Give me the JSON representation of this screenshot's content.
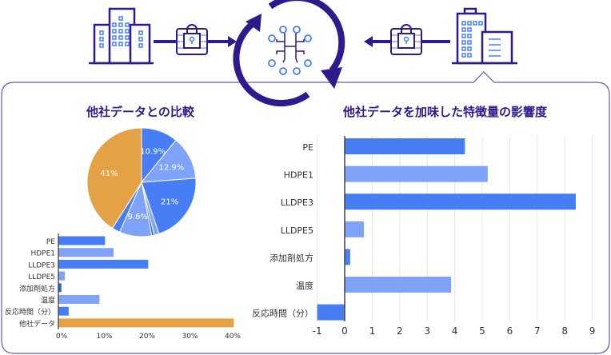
{
  "colors": {
    "primary": "#2e1a8c",
    "blue": "#477ef5",
    "light_blue": "#7fa3f8",
    "orange": "#e5a244",
    "frame": "#6a52b8"
  },
  "icons": [
    "company-building-icon",
    "encrypted-data-lock-icon",
    "arrow-right-icon",
    "ai-circuit-icon",
    "cycle-arrows-icon",
    "arrow-left-icon",
    "own-company-building-icon"
  ],
  "left_title": "他社データとの比較",
  "right_title": "他社データを加味した特徴量の影響度",
  "chart_data": [
    {
      "type": "pie",
      "categories": [
        "PE",
        "HDPE1",
        "LLDPE3",
        "LLDPE5",
        "添加剤処方",
        "温度",
        "反応時間（分）",
        "他社データ"
      ],
      "values": [
        10.9,
        12.9,
        21,
        1.5,
        0.7,
        9.6,
        2.4,
        41
      ],
      "data_labels": [
        "10.9%",
        "12.9%",
        "21%",
        "",
        "",
        "9.6%",
        "",
        "41%"
      ]
    },
    {
      "type": "bar",
      "orientation": "horizontal",
      "categories": [
        "PE",
        "HDPE1",
        "LLDPE3",
        "LLDPE5",
        "添加剤処方",
        "温度",
        "反応時間（分）",
        "他社データ"
      ],
      "values": [
        10.9,
        12.9,
        21,
        1.5,
        0.7,
        9.6,
        2.4,
        41
      ],
      "unit": "%",
      "xlim": [
        0,
        40
      ],
      "xticks": [
        "0%",
        "10%",
        "20%",
        "30%",
        "40%"
      ],
      "grid": false
    },
    {
      "type": "bar",
      "orientation": "horizontal",
      "categories": [
        "PE",
        "HDPE1",
        "LLDPE3",
        "LLDPE5",
        "添加剤処方",
        "温度",
        "反応時間（分）"
      ],
      "values": [
        4.37,
        5.2,
        8.4,
        0.7,
        0.2,
        3.87,
        -1.0
      ],
      "xlim": [
        -1,
        9
      ],
      "xticks": [
        "-1",
        "0",
        "1",
        "2",
        "3",
        "4",
        "5",
        "6",
        "7",
        "8",
        "9"
      ],
      "grid": true
    }
  ]
}
